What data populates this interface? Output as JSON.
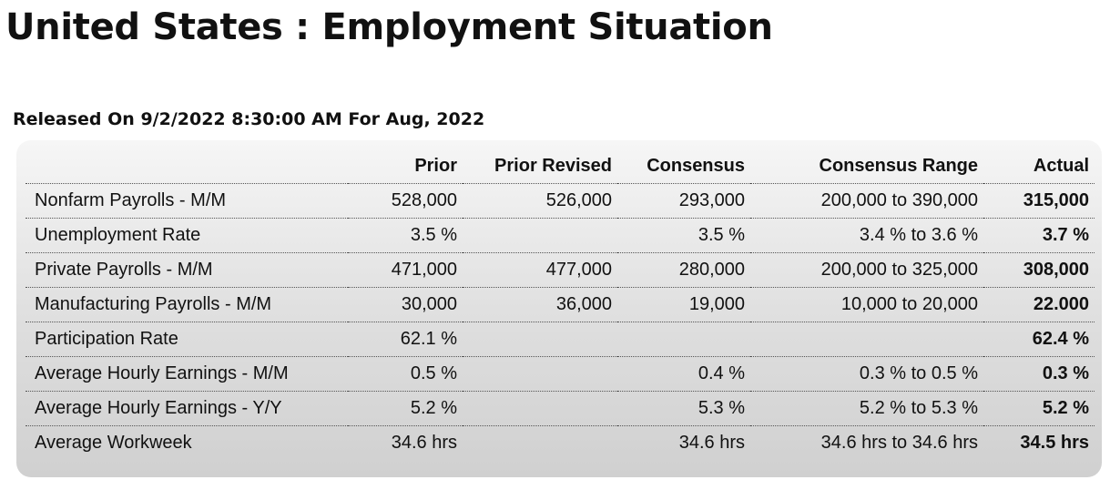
{
  "title": "United States : Employment Situation",
  "release": "Released On 9/2/2022 8:30:00 AM For Aug, 2022",
  "table": {
    "headers": [
      "",
      "Prior",
      "Prior Revised",
      "Consensus",
      "Consensus Range",
      "Actual"
    ],
    "rows": [
      [
        "Nonfarm Payrolls - M/M",
        "528,000",
        "526,000",
        "293,000",
        "200,000  to 390,000",
        "315,000"
      ],
      [
        "Unemployment Rate",
        "3.5 %",
        "",
        "3.5 %",
        "3.4 % to 3.6 %",
        "3.7 %"
      ],
      [
        "Private Payrolls - M/M",
        "471,000",
        "477,000",
        "280,000",
        "200,000  to 325,000",
        "308,000"
      ],
      [
        "Manufacturing Payrolls - M/M",
        "30,000",
        "36,000",
        "19,000",
        "10,000  to 20,000",
        "22.000"
      ],
      [
        "Participation Rate",
        "62.1 %",
        "",
        "",
        "",
        "62.4 %"
      ],
      [
        "Average Hourly Earnings - M/M",
        "0.5 %",
        "",
        "0.4 %",
        "0.3 % to 0.5 %",
        "0.3 %"
      ],
      [
        "Average Hourly Earnings - Y/Y",
        "5.2 %",
        "",
        "5.3 %",
        "5.2 % to 5.3 %",
        "5.2 %"
      ],
      [
        "Average Workweek",
        "34.6 hrs",
        "",
        "34.6 hrs",
        "34.6 hrs to 34.6 hrs",
        "34.5 hrs"
      ]
    ]
  }
}
